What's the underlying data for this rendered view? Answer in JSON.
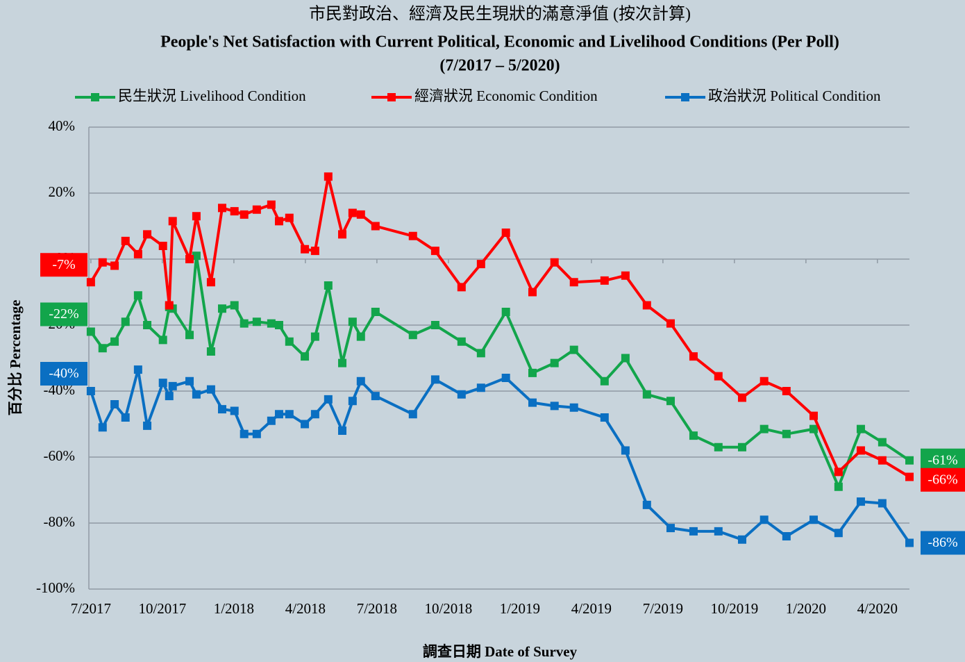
{
  "chart_data": {
    "type": "line",
    "title": "市民對政治、經濟及民生現狀的滿意淨值 (按次計算)",
    "subtitle": [
      "People's Net Satisfaction with Current Political, Economic and Livelihood Conditions (Per Poll)",
      "(7/2017 – 5/2020)"
    ],
    "x_label": "調查日期 Date of Survey",
    "y_label": "百分比 Percentage",
    "x": [
      2017.5,
      2017.541,
      2017.583,
      2017.621,
      2017.665,
      2017.697,
      2017.752,
      2017.774,
      2017.786,
      2017.845,
      2017.869,
      2017.92,
      2017.959,
      2018.002,
      2018.036,
      2018.08,
      2018.131,
      2018.158,
      2018.194,
      2018.248,
      2018.284,
      2018.33,
      2018.379,
      2018.415,
      2018.444,
      2018.495,
      2018.626,
      2018.704,
      2018.796,
      2018.864,
      2018.951,
      2019.044,
      2019.121,
      2019.189,
      2019.296,
      2019.369,
      2019.444,
      2019.527,
      2019.607,
      2019.694,
      2019.777,
      2019.854,
      2019.932,
      2020.027,
      2020.114,
      2020.192,
      2020.267,
      2020.362
    ],
    "series": [
      {
        "name": "民生狀況 Livelihood Condition",
        "color": "#12a54b",
        "values": [
          -22,
          -27,
          -25,
          -19,
          -11,
          -20,
          -24.5,
          -14.5,
          -15,
          -23,
          1,
          -28,
          -15,
          -14,
          -19.5,
          -19,
          -19.5,
          -20,
          -25,
          -29.5,
          -23.5,
          -8,
          -31.5,
          -19,
          -23.5,
          -16,
          -23,
          -20,
          -25,
          -28.5,
          -16,
          -34.5,
          -31.5,
          -27.5,
          -37,
          -30,
          -41,
          -43,
          -53.5,
          -57,
          -57,
          -51.5,
          -53,
          -51.5,
          -69,
          -51.5,
          -55.5,
          -61
        ],
        "value_labels": [
          "-22%",
          null,
          null,
          null,
          null,
          null,
          null,
          null,
          null,
          null,
          null,
          null,
          null,
          null,
          null,
          null,
          null,
          null,
          null,
          null,
          null,
          null,
          null,
          null,
          null,
          null,
          null,
          null,
          null,
          null,
          null,
          null,
          null,
          null,
          null,
          null,
          null,
          null,
          null,
          null,
          null,
          null,
          null,
          null,
          null,
          null,
          null,
          "-61%"
        ]
      },
      {
        "name": "經濟狀況 Economic Condition",
        "color": "#ff0000",
        "values": [
          -7,
          -1,
          -2,
          5.5,
          1.5,
          7.5,
          4,
          -14,
          11.5,
          0,
          13,
          -7,
          15.5,
          14.5,
          13.5,
          15,
          16.5,
          11.5,
          12.5,
          3,
          2.5,
          25,
          7.5,
          14,
          13.5,
          10,
          7,
          2.5,
          -8.5,
          -1.5,
          8,
          -10,
          -1,
          -7,
          -6.5,
          -5,
          -14,
          -19.5,
          -29.5,
          -35.5,
          -42,
          -37,
          -40,
          -47.5,
          -64.5,
          -58,
          -61,
          -66
        ],
        "value_labels": [
          "-7%",
          null,
          null,
          null,
          null,
          null,
          null,
          null,
          null,
          null,
          null,
          null,
          null,
          null,
          null,
          null,
          null,
          null,
          null,
          null,
          null,
          null,
          null,
          null,
          null,
          null,
          null,
          null,
          null,
          null,
          null,
          null,
          null,
          null,
          null,
          null,
          null,
          null,
          null,
          null,
          null,
          null,
          null,
          null,
          null,
          null,
          null,
          "-66%"
        ]
      },
      {
        "name": "政治狀況 Political Condition",
        "color": "#0a6fc2",
        "values": [
          -40,
          -51,
          -44,
          -48,
          -33.5,
          -50.5,
          -37.5,
          -41.5,
          -38.5,
          -37,
          -41,
          -39.5,
          -45.5,
          -46,
          -53,
          -53,
          -49,
          -47,
          -47,
          -50,
          -47,
          -42.5,
          -52,
          -43,
          -37,
          -41.5,
          -47,
          -36.5,
          -41,
          -39,
          -36,
          -43.5,
          -44.5,
          -45,
          -48,
          -58,
          -74.5,
          -81.5,
          -82.5,
          -82.5,
          -85,
          -79,
          -84,
          -79,
          -83,
          -73.5,
          -74,
          -86
        ],
        "value_labels": [
          "-40%",
          null,
          null,
          null,
          null,
          null,
          null,
          null,
          null,
          null,
          null,
          null,
          null,
          null,
          null,
          null,
          null,
          null,
          null,
          null,
          null,
          null,
          null,
          null,
          null,
          null,
          null,
          null,
          null,
          null,
          null,
          null,
          null,
          null,
          null,
          null,
          null,
          null,
          null,
          null,
          null,
          null,
          null,
          null,
          null,
          null,
          null,
          "-86%"
        ]
      }
    ],
    "xlim": [
      2017.493,
      2020.362
    ],
    "xticks": [
      {
        "value": 2017.5,
        "label": "7/2017"
      },
      {
        "value": 2017.75,
        "label": "10/2017"
      },
      {
        "value": 2018.0,
        "label": "1/2018"
      },
      {
        "value": 2018.25,
        "label": "4/2018"
      },
      {
        "value": 2018.5,
        "label": "7/2018"
      },
      {
        "value": 2018.75,
        "label": "10/2018"
      },
      {
        "value": 2019.0,
        "label": "1/2019"
      },
      {
        "value": 2019.25,
        "label": "4/2019"
      },
      {
        "value": 2019.5,
        "label": "7/2019"
      },
      {
        "value": 2019.75,
        "label": "10/2019"
      },
      {
        "value": 2020.0,
        "label": "1/2020"
      },
      {
        "value": 2020.25,
        "label": "4/2020"
      }
    ],
    "ylim": [
      -100,
      40
    ],
    "yticks": [
      {
        "value": -100,
        "label": "-100%"
      },
      {
        "value": -80,
        "label": "-80%"
      },
      {
        "value": -60,
        "label": "-60%"
      },
      {
        "value": -40,
        "label": "-40%"
      },
      {
        "value": -20,
        "label": "-20%"
      },
      {
        "value": 0,
        "label": "0%"
      },
      {
        "value": 20,
        "label": "20%"
      },
      {
        "value": 40,
        "label": "40%"
      }
    ],
    "grid": true,
    "legend": "top"
  }
}
